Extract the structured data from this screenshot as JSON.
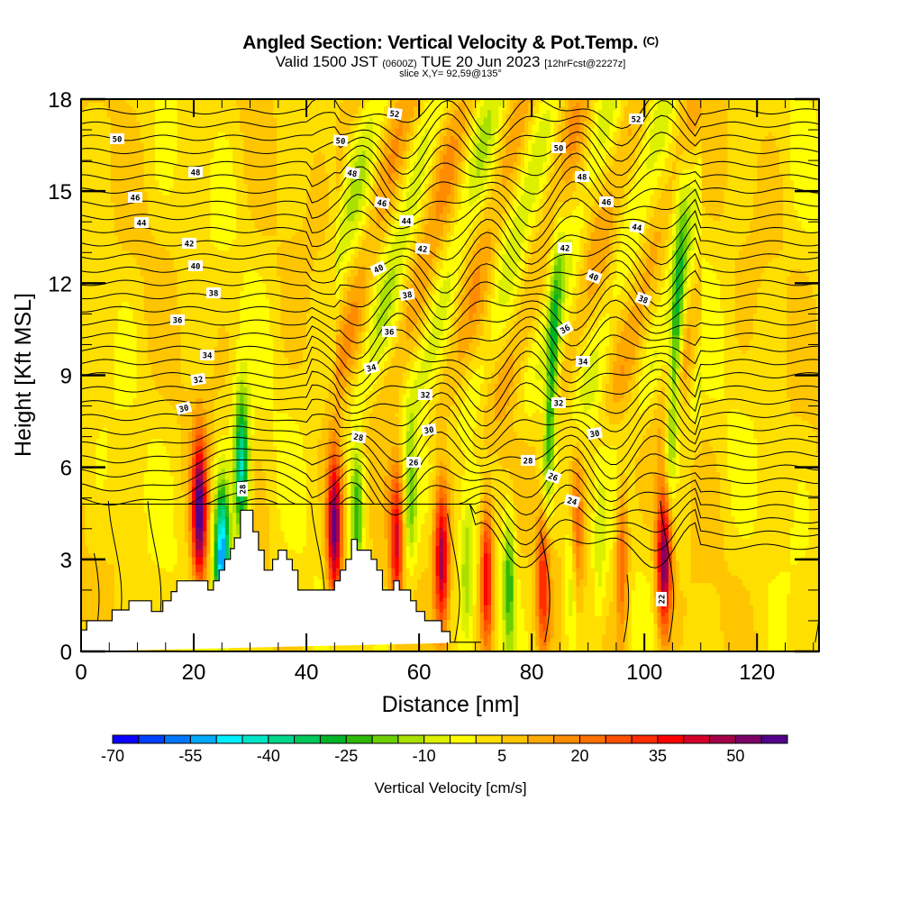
{
  "header": {
    "title": "Angled Section: Vertical Velocity & Pot.Temp.",
    "title_mark": "(C)",
    "valid_prefix": "Valid 1500 JST",
    "valid_utc": "(0600Z)",
    "valid_date": "TUE 20 Jun 2023",
    "forecast": "[12hrFcst@2227z]",
    "slice": "slice X,Y= 92,59@135°"
  },
  "chart_data": {
    "type": "heatmap",
    "title": "Angled Section: Vertical Velocity & Pot.Temp.",
    "xlabel": "Distance [nm]",
    "ylabel": "Height [Kft MSL]",
    "xlim": [
      0,
      131
    ],
    "ylim": [
      0,
      18
    ],
    "x_ticks": [
      0,
      20,
      40,
      60,
      80,
      100,
      120
    ],
    "x_minor_step": 5,
    "y_ticks": [
      0,
      3,
      6,
      9,
      12,
      15,
      18
    ],
    "colorbar": {
      "label": "Vertical Velocity [cm/s]",
      "placement": "bottom",
      "min": -70,
      "step": 5,
      "tick_labels": [
        "-70",
        "-55",
        "-40",
        "-25",
        "-10",
        "5",
        "20",
        "35",
        "50"
      ],
      "colors": [
        "#0a00ff",
        "#0040ff",
        "#0077ff",
        "#00aaff",
        "#00f0ff",
        "#00e5c8",
        "#00d68c",
        "#00c85a",
        "#00b428",
        "#2fb80a",
        "#6ccf00",
        "#a9e000",
        "#dcf000",
        "#ffff00",
        "#ffdf00",
        "#ffc500",
        "#ffa800",
        "#ff8c00",
        "#ff7000",
        "#ff5000",
        "#ff2d00",
        "#ff0000",
        "#d4002a",
        "#a5004a",
        "#7d0068",
        "#55008a"
      ]
    },
    "vertical_velocity_features": [
      {
        "name": "updraft",
        "distance": 21,
        "height": 4.5,
        "value": 55
      },
      {
        "name": "downdraft",
        "distance": 25,
        "height": 3.0,
        "value": -60
      },
      {
        "name": "downdraft",
        "distance": 28.5,
        "height": 6.0,
        "value": -45
      },
      {
        "name": "updraft",
        "distance": 45,
        "height": 4.0,
        "value": 55
      },
      {
        "name": "downdraft",
        "distance": 49,
        "height": 4.5,
        "value": -25
      },
      {
        "name": "updraft",
        "distance": 56,
        "height": 3.5,
        "value": 35
      },
      {
        "name": "downdraft",
        "distance": 58.5,
        "height": 5.0,
        "value": -20
      },
      {
        "name": "updraft",
        "distance": 64,
        "height": 3.0,
        "value": 45
      },
      {
        "name": "downdraft",
        "distance": 68.5,
        "height": 2.5,
        "value": -15
      },
      {
        "name": "updraft",
        "distance": 72,
        "height": 2.5,
        "value": 40
      },
      {
        "name": "downdraft",
        "distance": 76,
        "height": 2.5,
        "value": -25
      },
      {
        "name": "updraft",
        "distance": 82,
        "height": 2.5,
        "value": 35
      },
      {
        "name": "downdraft",
        "distance": 83.5,
        "height": 8.5,
        "value": -30
      },
      {
        "name": "downdraft",
        "distance": 87,
        "height": 2.5,
        "value": -15
      },
      {
        "name": "updraft",
        "distance": 88,
        "height": 4.0,
        "value": 20
      },
      {
        "name": "downdraft",
        "distance": 92,
        "height": 3.0,
        "value": -10
      },
      {
        "name": "updraft",
        "distance": 96,
        "height": 3.0,
        "value": 25
      },
      {
        "name": "updraft",
        "distance": 103.5,
        "height": 3.0,
        "value": 55
      },
      {
        "name": "downdraft",
        "distance": 105.5,
        "height": 9.5,
        "value": -30
      }
    ],
    "potential_temperature_contours": {
      "levels": [
        22,
        24,
        26,
        28,
        30,
        32,
        34,
        36,
        38,
        40,
        42,
        44,
        46,
        48,
        50,
        52
      ],
      "labels": [
        "50",
        "48",
        "46",
        "44",
        "42",
        "40",
        "38",
        "36",
        "34",
        "32",
        "30",
        "52",
        "50",
        "48",
        "46",
        "44",
        "42",
        "40",
        "38",
        "36",
        "34",
        "32",
        "30",
        "28",
        "26",
        "28",
        "52",
        "50",
        "48",
        "46",
        "44",
        "42",
        "40",
        "38",
        "36",
        "34",
        "32",
        "30",
        "28",
        "26",
        "24",
        "22"
      ]
    },
    "terrain_profile": {
      "distance": [
        0,
        1,
        1,
        5.5,
        5.5,
        8.5,
        8.5,
        12.5,
        12.5,
        14.5,
        14.5,
        16,
        16,
        17,
        17,
        22.5,
        22.5,
        23.5,
        23.5,
        24.5,
        24.5,
        25.5,
        25.5,
        26.5,
        26.5,
        27.2,
        27.2,
        28.3,
        28.3,
        30.5,
        30.5,
        31.5,
        31.5,
        32.5,
        32.5,
        34,
        34,
        35,
        35,
        36.5,
        36.5,
        37.5,
        37.5,
        38.5,
        38.5,
        45,
        45,
        46,
        46,
        47,
        47,
        48,
        48,
        49,
        49,
        51.5,
        51.5,
        52.5,
        52.5,
        53.5,
        53.5,
        55.5,
        55.5,
        56.5,
        56.5,
        58.5,
        58.5,
        59.5,
        59.5,
        61,
        61,
        64,
        64,
        65.5,
        65.5,
        67.5,
        67.5,
        71,
        71,
        131
      ],
      "height": [
        0.7,
        0.7,
        1.0,
        1.0,
        1.35,
        1.35,
        1.65,
        1.65,
        1.3,
        1.3,
        1.65,
        1.65,
        1.95,
        1.95,
        2.3,
        2.3,
        2.0,
        2.0,
        2.3,
        2.3,
        2.65,
        2.65,
        3.0,
        3.0,
        3.35,
        3.35,
        3.7,
        3.7,
        4.6,
        4.6,
        3.9,
        3.9,
        3.3,
        3.3,
        2.65,
        2.65,
        3.0,
        3.0,
        3.3,
        3.3,
        3.0,
        3.0,
        2.65,
        2.65,
        2.0,
        2.0,
        2.3,
        2.3,
        2.65,
        2.65,
        3.0,
        3.0,
        3.65,
        3.65,
        3.3,
        3.3,
        3.0,
        3.0,
        2.65,
        2.65,
        2.0,
        2.0,
        2.3,
        2.3,
        2.0,
        2.0,
        1.65,
        1.65,
        1.3,
        1.3,
        1.0,
        1.0,
        0.65,
        0.65,
        0.3,
        0.3,
        0.3,
        0.3
      ]
    }
  }
}
